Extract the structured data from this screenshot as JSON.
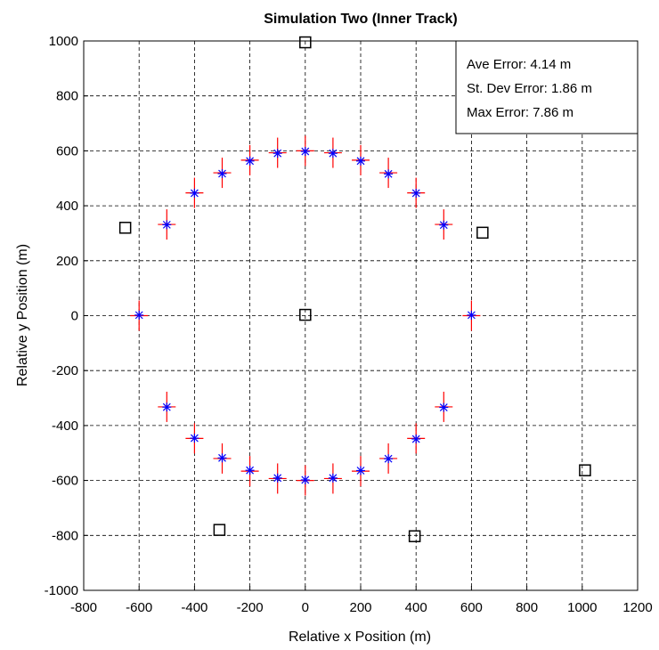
{
  "chart_data": {
    "type": "scatter",
    "title": "Simulation Two (Inner Track)",
    "xlabel": "Relative x Position (m)",
    "ylabel": "Relative y Position (m)",
    "xlim": [
      -800,
      1200
    ],
    "ylim": [
      -1000,
      1000
    ],
    "xticks": [
      -800,
      -600,
      -400,
      -200,
      0,
      200,
      400,
      600,
      800,
      1000,
      1200
    ],
    "yticks": [
      -1000,
      -800,
      -600,
      -400,
      -200,
      0,
      200,
      400,
      600,
      800,
      1000
    ],
    "grid": true,
    "grid_style": "dashed",
    "annotation_lines": [
      "Ave Error: 4.14 m",
      "St. Dev Error: 1.86 m",
      "Max Error: 7.86 m"
    ],
    "annotation_placement": "top-right",
    "series": [
      {
        "marker": "plus",
        "color": "#ff0000",
        "x": [
          0,
          100,
          200,
          300,
          400,
          500,
          600,
          500,
          400,
          300,
          200,
          100,
          0,
          -100,
          -200,
          -300,
          -400,
          -500,
          -600,
          -500,
          -400,
          -300,
          -200,
          -100
        ],
        "y": [
          600,
          593,
          566,
          520,
          447,
          332,
          0,
          -332,
          -447,
          -520,
          -566,
          -593,
          -600,
          -593,
          -566,
          -520,
          -447,
          -332,
          0,
          332,
          447,
          520,
          566,
          593
        ]
      },
      {
        "marker": "star",
        "color": "#0000ff",
        "x": [
          0,
          100,
          200,
          300,
          400,
          500,
          600,
          500,
          400,
          300,
          200,
          100,
          0,
          -100,
          -200,
          -300,
          -400,
          -500,
          -600,
          -500,
          -400,
          -300,
          -200,
          -100
        ],
        "y": [
          598,
          591,
          563,
          516,
          446,
          330,
          2,
          -334,
          -449,
          -521,
          -564,
          -591,
          -598,
          -591,
          -563,
          -518,
          -446,
          -333,
          2,
          331,
          446,
          517,
          563,
          591
        ]
      },
      {
        "marker": "square",
        "color": "#000000",
        "x": [
          0,
          640,
          1010,
          395,
          -310,
          -650,
          0
        ],
        "y": [
          995,
          302,
          -563,
          -803,
          -780,
          320,
          3
        ]
      }
    ]
  }
}
